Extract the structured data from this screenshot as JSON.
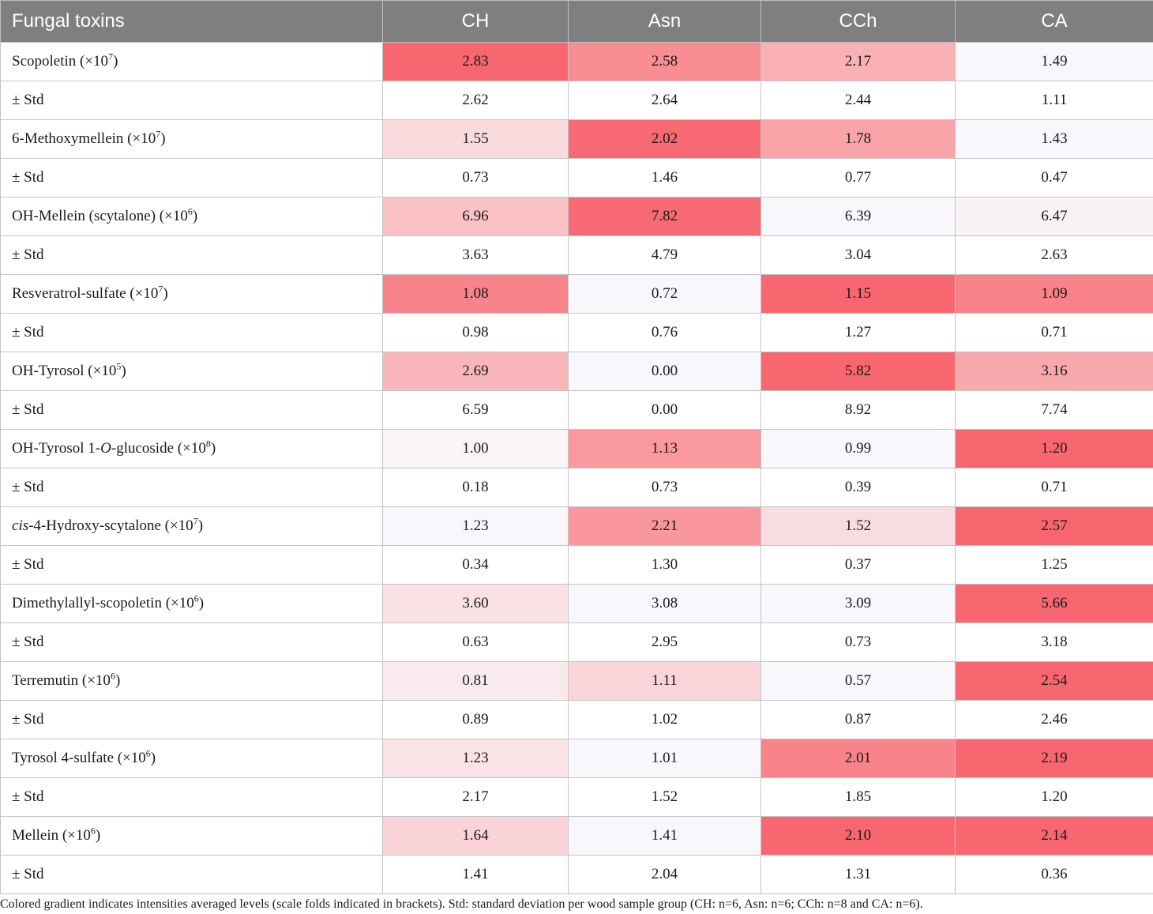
{
  "table": {
    "header": [
      "Fungal toxins",
      "CH",
      "Asn",
      "CCh",
      "CA"
    ],
    "rows": [
      {
        "pre": "",
        "italic": "",
        "name": "Scopoletin (×10",
        "exp": "7",
        "post": ")",
        "values": [
          "2.83",
          "2.58",
          "2.17",
          "1.49"
        ],
        "colors": [
          "#f86770",
          "#f98d94",
          "#f9b1b5",
          "#f8f8fc"
        ]
      },
      {
        "pre": "",
        "italic": "",
        "name": "± Std",
        "exp": "",
        "post": "",
        "values": [
          "2.62",
          "2.64",
          "2.44",
          "1.11"
        ],
        "colors": [
          "",
          "",
          "",
          ""
        ]
      },
      {
        "pre": "",
        "italic": "",
        "name": "6-Methoxymellein (×10",
        "exp": "7",
        "post": ")",
        "values": [
          "1.55",
          "2.02",
          "1.78",
          "1.43"
        ],
        "colors": [
          "#f9dadd",
          "#f86a73",
          "#f9a4a8",
          "#f8f8fc"
        ]
      },
      {
        "pre": "",
        "italic": "",
        "name": "± Std",
        "exp": "",
        "post": "",
        "values": [
          "0.73",
          "1.46",
          "0.77",
          "0.47"
        ],
        "colors": [
          "",
          "",
          "",
          ""
        ]
      },
      {
        "pre": "",
        "italic": "",
        "name": "OH-Mellein (scytalone) (×10",
        "exp": "6",
        "post": ")",
        "values": [
          "6.96",
          "7.82",
          "6.39",
          "6.47"
        ],
        "colors": [
          "#f9c1c4",
          "#f86a73",
          "#f8f8fc",
          "#f9f2f4"
        ]
      },
      {
        "pre": "",
        "italic": "",
        "name": "± Std",
        "exp": "",
        "post": "",
        "values": [
          "3.63",
          "4.79",
          "3.04",
          "2.63"
        ],
        "colors": [
          "",
          "",
          "",
          ""
        ]
      },
      {
        "pre": "",
        "italic": "",
        "name": "Resveratrol-sulfate (×10",
        "exp": "7",
        "post": ")",
        "values": [
          "1.08",
          "0.72",
          "1.15",
          "1.09"
        ],
        "colors": [
          "#f8848b",
          "#f8f8fc",
          "#f86770",
          "#f8818a"
        ]
      },
      {
        "pre": "",
        "italic": "",
        "name": "± Std",
        "exp": "",
        "post": "",
        "values": [
          "0.98",
          "0.76",
          "1.27",
          "0.71"
        ],
        "colors": [
          "",
          "",
          "",
          ""
        ]
      },
      {
        "pre": "",
        "italic": "",
        "name": "OH-Tyrosol (×10",
        "exp": "5",
        "post": ")",
        "values": [
          "2.69",
          "0.00",
          "5.82",
          "3.16"
        ],
        "colors": [
          "#f9b6ba",
          "#f8f8fc",
          "#f86770",
          "#f9a9ad"
        ]
      },
      {
        "pre": "",
        "italic": "",
        "name": "± Std",
        "exp": "",
        "post": "",
        "values": [
          "6.59",
          "0.00",
          "8.92",
          "7.74"
        ],
        "colors": [
          "",
          "",
          "",
          ""
        ]
      },
      {
        "pre": "",
        "italic": "",
        "name": "OH-Tyrosol 1-",
        "italic2": "O",
        "name2": "-glucoside (×10",
        "exp": "8",
        "post": ")",
        "values": [
          "1.00",
          "1.13",
          "0.99",
          "1.20"
        ],
        "colors": [
          "#f8f4f7",
          "#f9989e",
          "#f8f8fc",
          "#f86770"
        ]
      },
      {
        "pre": "",
        "italic": "",
        "name": "± Std",
        "exp": "",
        "post": "",
        "values": [
          "0.18",
          "0.73",
          "0.39",
          "0.71"
        ],
        "colors": [
          "",
          "",
          "",
          ""
        ]
      },
      {
        "pre": "",
        "italic": "cis",
        "name": "-4-Hydroxy-scytalone (×10",
        "exp": "7",
        "post": ")",
        "values": [
          "1.23",
          "2.21",
          "1.52",
          "2.57"
        ],
        "colors": [
          "#f8f8fc",
          "#f9979d",
          "#f9dce0",
          "#f86770"
        ]
      },
      {
        "pre": "",
        "italic": "",
        "name": "± Std",
        "exp": "",
        "post": "",
        "values": [
          "0.34",
          "1.30",
          "0.37",
          "1.25"
        ],
        "colors": [
          "",
          "",
          "",
          ""
        ]
      },
      {
        "pre": "",
        "italic": "",
        "name": "Dimethylallyl-scopoletin (×10",
        "exp": "6",
        "post": ")",
        "values": [
          "3.60",
          "3.08",
          "3.09",
          "5.66"
        ],
        "colors": [
          "#f9e1e5",
          "#f8f8fc",
          "#f8f8fc",
          "#f86770"
        ]
      },
      {
        "pre": "",
        "italic": "",
        "name": "± Std",
        "exp": "",
        "post": "",
        "values": [
          "0.63",
          "2.95",
          "0.73",
          "3.18"
        ],
        "colors": [
          "",
          "",
          "",
          ""
        ]
      },
      {
        "pre": "",
        "italic": "",
        "name": "Terremutin (×10",
        "exp": "6",
        "post": ")",
        "values": [
          "0.81",
          "1.11",
          "0.57",
          "2.54"
        ],
        "colors": [
          "#f9eaed",
          "#f9d4d8",
          "#f8f8fc",
          "#f86770"
        ]
      },
      {
        "pre": "",
        "italic": "",
        "name": "± Std",
        "exp": "",
        "post": "",
        "values": [
          "0.89",
          "1.02",
          "0.87",
          "2.46"
        ],
        "colors": [
          "",
          "",
          "",
          ""
        ]
      },
      {
        "pre": "",
        "italic": "",
        "name": "Tyrosol 4-sulfate (×10",
        "exp": "6",
        "post": ")",
        "values": [
          "1.23",
          "1.01",
          "2.01",
          "2.19"
        ],
        "colors": [
          "#f9e3e7",
          "#f8f8fc",
          "#f8838a",
          "#f86770"
        ]
      },
      {
        "pre": "",
        "italic": "",
        "name": "± Std",
        "exp": "",
        "post": "",
        "values": [
          "2.17",
          "1.52",
          "1.85",
          "1.20"
        ],
        "colors": [
          "",
          "",
          "",
          ""
        ]
      },
      {
        "pre": "",
        "italic": "",
        "name": "Mellein (×10",
        "exp": "6",
        "post": ")",
        "values": [
          "1.64",
          "1.41",
          "2.10",
          "2.14"
        ],
        "colors": [
          "#f9d3d7",
          "#f8f8fc",
          "#f86770",
          "#f86770"
        ]
      },
      {
        "pre": "",
        "italic": "",
        "name": "± Std",
        "exp": "",
        "post": "",
        "values": [
          "1.41",
          "2.04",
          "1.31",
          "0.36"
        ],
        "colors": [
          "",
          "",
          "",
          ""
        ]
      }
    ]
  },
  "footnote": "Colored gradient indicates intensities averaged levels (scale folds indicated in brackets). Std: standard deviation per wood sample group (CH: n=6, Asn: n=6; CCh: n=8 and CA: n=6)."
}
